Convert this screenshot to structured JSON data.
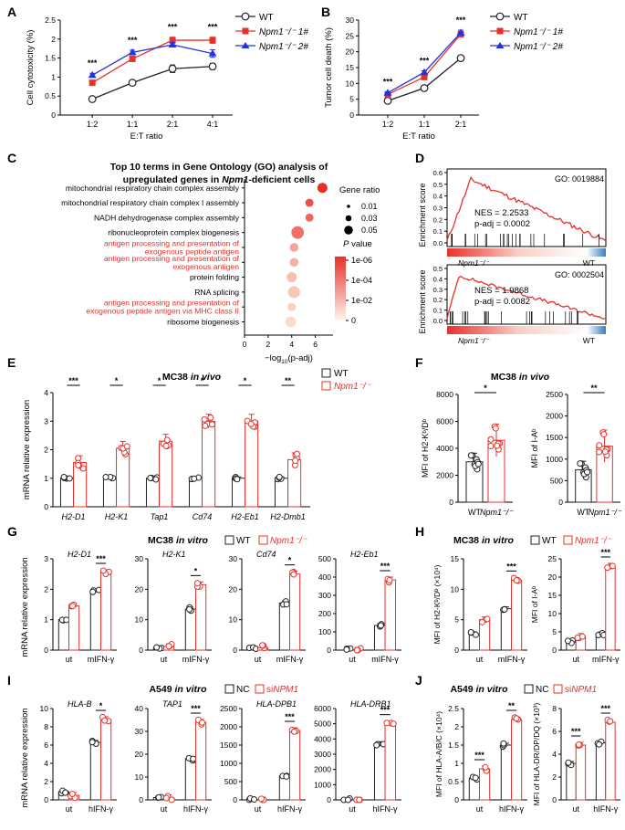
{
  "colors": {
    "wt": "#222222",
    "ko": "#e8302a",
    "ko2": "#2233dd",
    "red": "#e8302a",
    "gray": "#555555"
  },
  "panels": {
    "A": {
      "label": "A",
      "ylabel": "Cell cytotoxicity (%)",
      "xlabel": "E:T ratio"
    },
    "B": {
      "label": "B",
      "ylabel": "Tumor cell death (%)",
      "xlabel": "E:T ratio"
    },
    "C": {
      "label": "C",
      "title1": "Top 10 terms in Gene Ontology (GO) analysis of",
      "title2": "upregulated genes in",
      "title_gene": "Npm1",
      "title3": "-deficient cells"
    },
    "D": {
      "label": "D"
    },
    "E": {
      "label": "E",
      "title": "MC38",
      "title_it": "in vivo",
      "ylabel": "mRNA relative expression"
    },
    "F": {
      "label": "F",
      "title": "MC38",
      "title_it": "in vivo"
    },
    "G": {
      "label": "G",
      "title": "MC38",
      "title_it": "in vitro",
      "ylabel": "mRNA relative expression"
    },
    "H": {
      "label": "H",
      "title": "MC38",
      "title_it": "in vitro"
    },
    "I": {
      "label": "I",
      "title": "A549",
      "title_it": "in vitro",
      "ylabel": "mRNA relative expression"
    },
    "J": {
      "label": "J",
      "title": "A549",
      "title_it": "in vitro"
    }
  },
  "legends": {
    "wt": "WT",
    "ko1": "Npm1⁻/⁻ 1#",
    "ko2": "Npm1⁻/⁻ 2#",
    "ko": "Npm1⁻/⁻",
    "nc": "NC",
    "si_pre": "si",
    "si_gene": "NPM1"
  },
  "chart_data": [
    {
      "id": "A",
      "type": "line",
      "categories": [
        "1:2",
        "1:1",
        "2:1",
        "4:1"
      ],
      "ylim": [
        0,
        2.5
      ],
      "yticks": [
        0,
        0.5,
        1,
        1.5,
        2,
        2.5
      ],
      "series": [
        {
          "name": "WT",
          "values": [
            0.42,
            0.85,
            1.22,
            1.28
          ],
          "err": [
            0.04,
            0.05,
            0.1,
            0.08
          ]
        },
        {
          "name": "Npm1-/- 1#",
          "values": [
            0.85,
            1.48,
            1.97,
            1.97
          ],
          "err": [
            0.04,
            0.05,
            0.08,
            0.08
          ]
        },
        {
          "name": "Npm1-/- 2#",
          "values": [
            1.05,
            1.65,
            1.85,
            1.62
          ],
          "err": [
            0.05,
            0.06,
            0.06,
            0.1
          ]
        }
      ],
      "sig": [
        "***",
        "***",
        "***",
        "***"
      ]
    },
    {
      "id": "B",
      "type": "line",
      "categories": [
        "1:2",
        "1:1",
        "2:1"
      ],
      "ylim": [
        0,
        30
      ],
      "yticks": [
        0,
        5,
        10,
        15,
        20,
        25,
        30
      ],
      "series": [
        {
          "name": "WT",
          "values": [
            4.5,
            8.5,
            18
          ],
          "err": [
            0.3,
            0.4,
            0.4
          ]
        },
        {
          "name": "Npm1-/- 1#",
          "values": [
            6.5,
            12,
            25.5
          ],
          "err": [
            0.4,
            0.5,
            0.8
          ]
        },
        {
          "name": "Npm1-/- 2#",
          "values": [
            7,
            13.5,
            26
          ],
          "err": [
            0.4,
            0.5,
            0.8
          ]
        }
      ],
      "sig": [
        "***",
        "***",
        "***"
      ]
    },
    {
      "id": "C",
      "type": "scatter",
      "xlabel_pre": "−log",
      "xlabel_sub": "10",
      "xlabel_post": "(p-adj)",
      "xticks": [
        0,
        2,
        4,
        6
      ],
      "xlim": [
        0,
        7.5
      ],
      "terms": [
        {
          "name": "mitochondrial respiratory chain complex assembly",
          "x": 6.6,
          "ratio": 0.05,
          "p": 1e-07,
          "red": false
        },
        {
          "name": "mitochondrial respiratory chain complex I assembly",
          "x": 5.5,
          "ratio": 0.035,
          "p": 1e-06,
          "red": false
        },
        {
          "name": "NADH dehydrogenase complex assembly",
          "x": 5.5,
          "ratio": 0.035,
          "p": 5e-06,
          "red": false
        },
        {
          "name": "ribonucleoprotein complex biogenesis",
          "x": 4.5,
          "ratio": 0.07,
          "p": 1e-05,
          "red": false
        },
        {
          "name": "antigen processing and presentation of|exogenous peptide antigen",
          "x": 4.2,
          "ratio": 0.04,
          "p": 0.0005,
          "red": true
        },
        {
          "name": "antigen processing and presentation of|exogenous antigen",
          "x": 4.2,
          "ratio": 0.04,
          "p": 0.001,
          "red": true
        },
        {
          "name": "protein folding",
          "x": 4.0,
          "ratio": 0.05,
          "p": 0.003,
          "red": false
        },
        {
          "name": "RNA splicing",
          "x": 4.2,
          "ratio": 0.065,
          "p": 0.005,
          "red": false
        },
        {
          "name": "antigen processing and presentation of|exogenous peptide antigen via MHC class II",
          "x": 4.0,
          "ratio": 0.035,
          "p": 0.01,
          "red": true
        },
        {
          "name": "ribosome biogenesis",
          "x": 3.9,
          "ratio": 0.055,
          "p": 0.02,
          "red": false
        }
      ],
      "size_legend": {
        "title": "Gene ratio",
        "items": [
          "0.01",
          "0.03",
          "0.05"
        ]
      },
      "color_legend": {
        "title": "P value",
        "items": [
          "1e-06",
          "1e-04",
          "1e-02",
          "0"
        ]
      }
    },
    {
      "id": "D",
      "type": "line",
      "panels": [
        {
          "go": "GO: 0019884",
          "nes": "NES = 2.2533",
          "padj": "p-adj = 0.0002",
          "yticks": [
            "0.6",
            "0.5",
            "0.4",
            "0.3",
            "0.2",
            "0.1",
            "0.0"
          ],
          "ylabel": "Enrichment score",
          "left": "Npm1⁻/⁻",
          "right": "WT"
        },
        {
          "go": "GO: 0002504",
          "nes": "NES = 1.9868",
          "padj": "p-adj = 0.0082",
          "yticks": [
            "0.5",
            "0.4",
            "0.3",
            "0.2",
            "0.1",
            "0.0"
          ],
          "ylabel": "Enrichment score",
          "left": "Npm1⁻/⁻",
          "right": "WT"
        }
      ]
    },
    {
      "id": "E",
      "type": "bar",
      "categories": [
        "H2-D1",
        "H2-K1",
        "Tap1",
        "Cd74",
        "H2-Eb1",
        "H2-Dmb1"
      ],
      "ylim": [
        0,
        4
      ],
      "yticks": [
        0,
        1,
        2,
        3,
        4
      ],
      "series": [
        {
          "name": "WT",
          "values": [
            1,
            1,
            1,
            1,
            1,
            1
          ]
        },
        {
          "name": "Npm1-/-",
          "values": [
            1.55,
            2.05,
            2.3,
            3.0,
            3.0,
            1.65
          ]
        }
      ],
      "sig": [
        "***",
        "*",
        "*",
        "*",
        "*",
        "**"
      ]
    },
    {
      "id": "F1",
      "type": "bar",
      "categories": [
        "WT",
        "Npm1⁻/⁻"
      ],
      "ylabel": "MFI of H2-Kᵇ/Dᵇ",
      "ylim": [
        0,
        8000
      ],
      "yticks": [
        0,
        2000,
        4000,
        6000,
        8000
      ],
      "values": [
        3000,
        4600
      ],
      "sig": "*"
    },
    {
      "id": "F2",
      "type": "bar",
      "categories": [
        "WT",
        "Npm1⁻/⁻"
      ],
      "ylabel": "MFI of I-Aᵇ",
      "ylim": [
        0,
        2500
      ],
      "yticks": [
        0,
        500,
        1000,
        1500,
        2000,
        2500
      ],
      "values": [
        750,
        1300
      ],
      "sig": "**"
    },
    {
      "id": "G",
      "type": "bar",
      "groups": [
        "ut",
        "mIFN-γ"
      ],
      "charts": [
        {
          "gene": "H2-D1",
          "ylim": [
            0,
            3
          ],
          "yticks": [
            0,
            1,
            2,
            3
          ],
          "wt": [
            1.0,
            1.95
          ],
          "ko": [
            1.45,
            2.55
          ],
          "sig": "***"
        },
        {
          "gene": "H2-K1",
          "ylim": [
            0,
            30
          ],
          "yticks": [
            0,
            10,
            20,
            30
          ],
          "wt": [
            0.8,
            13.5
          ],
          "ko": [
            1.2,
            21.5
          ],
          "sig": "*"
        },
        {
          "gene": "Cd74",
          "ylim": [
            0,
            30
          ],
          "yticks": [
            0,
            10,
            20,
            30
          ],
          "wt": [
            0.5,
            15.5
          ],
          "ko": [
            0.8,
            25
          ],
          "sig": "*"
        },
        {
          "gene": "H2-Eb1",
          "ylim": [
            0,
            500
          ],
          "yticks": [
            0,
            100,
            200,
            300,
            400,
            500
          ],
          "wt": [
            0,
            135
          ],
          "ko": [
            0,
            385
          ],
          "sig": "***"
        }
      ]
    },
    {
      "id": "H",
      "type": "bar",
      "groups": [
        "ut",
        "mIFN-γ"
      ],
      "charts": [
        {
          "ylabel": "MFI of H2-Kᵇ/Dᵇ (×10⁴)",
          "ylim": [
            0,
            15
          ],
          "yticks": [
            0,
            5,
            10,
            15
          ],
          "wt": [
            2.7,
            6.8
          ],
          "ko": [
            5.0,
            11.5
          ],
          "sig": "***"
        },
        {
          "ylabel": "MFI of I-Aᵇ",
          "ylim": [
            0,
            25
          ],
          "yticks": [
            0,
            5,
            10,
            15,
            20,
            25
          ],
          "wt": [
            2.2,
            4.5
          ],
          "ko": [
            3.8,
            23
          ],
          "sig": "***"
        }
      ]
    },
    {
      "id": "I",
      "type": "bar",
      "groups": [
        "ut",
        "hIFN-γ"
      ],
      "charts": [
        {
          "gene": "HLA-B",
          "ylim": [
            0,
            10
          ],
          "yticks": [
            0,
            2,
            4,
            6,
            8,
            10
          ],
          "wt": [
            0.9,
            6.3
          ],
          "ko": [
            0.5,
            8.8
          ],
          "sig": "*"
        },
        {
          "gene": "TAP1",
          "ylim": [
            0,
            40
          ],
          "yticks": [
            0,
            10,
            20,
            30,
            40
          ],
          "wt": [
            1,
            18
          ],
          "ko": [
            1,
            34
          ],
          "sig": "***"
        },
        {
          "gene": "HLA-DPB1",
          "ylim": [
            0,
            2500
          ],
          "yticks": [
            0,
            500,
            1000,
            1500,
            2000,
            2500
          ],
          "wt": [
            0,
            650
          ],
          "ko": [
            0,
            1900
          ],
          "sig": "***"
        },
        {
          "gene": "HLA-DRB1",
          "ylim": [
            0,
            6000
          ],
          "yticks": [
            0,
            1000,
            2000,
            3000,
            4000,
            5000,
            6000
          ],
          "wt": [
            0,
            3700
          ],
          "ko": [
            0,
            5000
          ],
          "sig": "***"
        }
      ]
    },
    {
      "id": "J",
      "type": "bar",
      "groups": [
        "ut",
        "hIFN-γ"
      ],
      "charts": [
        {
          "ylabel": "MFI of HLA-A/B/C (×10⁴)",
          "ylim": [
            0,
            2.5
          ],
          "yticks": [
            0,
            0.5,
            1,
            1.5,
            2,
            2.5
          ],
          "wt": [
            0.6,
            1.5
          ],
          "ko": [
            0.85,
            2.2
          ],
          "sig": [
            "***",
            "**"
          ]
        },
        {
          "ylabel": "MFI of HLA-DR/DP/DQ (×10³)",
          "ylim": [
            0,
            8
          ],
          "yticks": [
            0,
            2,
            4,
            6,
            8
          ],
          "wt": [
            3.2,
            5.0
          ],
          "ko": [
            4.8,
            6.8
          ],
          "sig": [
            "***",
            "***"
          ]
        }
      ]
    }
  ]
}
